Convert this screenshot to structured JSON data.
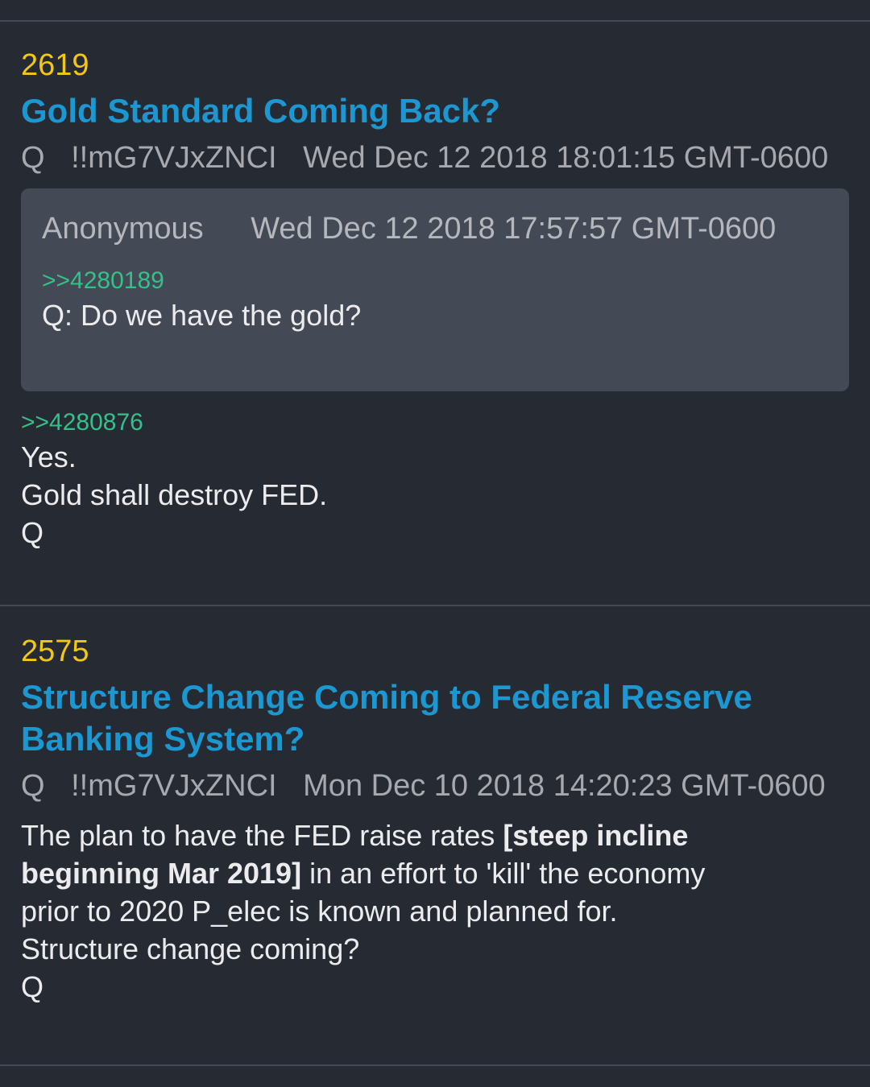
{
  "posts": [
    {
      "number": "2619",
      "title": "Gold Standard Coming Back?",
      "author": "Q",
      "tripcode": "!!mG7VJxZNCI",
      "timestamp": "Wed Dec 12 2018 18:01:15 GMT-0600",
      "quote": {
        "author": "Anonymous",
        "timestamp": "Wed Dec 12 2018 17:57:57 GMT-0600",
        "reply_ref": ">>4280189",
        "text": "Q: Do we have the gold?"
      },
      "reply_ref": ">>4280876",
      "body_lines": [
        "Yes.",
        "Gold shall destroy FED.",
        "Q"
      ]
    },
    {
      "number": "2575",
      "title_lines": [
        "Structure Change Coming to Federal Reserve",
        "Banking System?"
      ],
      "author": "Q",
      "tripcode": "!!mG7VJxZNCI",
      "timestamp": "Mon Dec 10 2018 14:20:23 GMT-0600",
      "body": {
        "line1_text": "The plan to have the FED raise rates ",
        "line1_bold": "[steep incline",
        "line2_bold": "beginning Mar 2019]",
        "line2_text": " in an effort to 'kill' the economy",
        "line3": "prior to 2020 P_elec is known and planned for.",
        "line4": "Structure change coming?",
        "line5": "Q"
      }
    }
  ],
  "colors": {
    "background": "#262a33",
    "post_number": "#f2c811",
    "title": "#1b97d1",
    "reply_link": "#36c089",
    "quote_box": "#434955",
    "meta": "#a7a9ae"
  }
}
